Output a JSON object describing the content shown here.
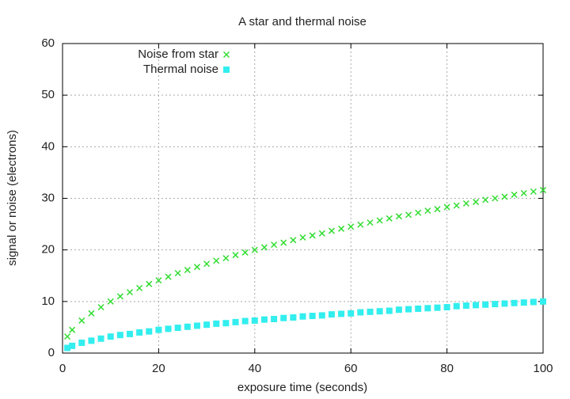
{
  "chart_data": {
    "type": "scatter",
    "title": "A star and thermal noise",
    "x_label": "exposure time (seconds)",
    "y_label": "signal or noise (electrons)",
    "x": [
      1,
      2,
      4,
      6,
      8,
      10,
      12,
      14,
      16,
      18,
      20,
      22,
      24,
      26,
      28,
      30,
      32,
      34,
      36,
      38,
      40,
      42,
      44,
      46,
      48,
      50,
      52,
      54,
      56,
      58,
      60,
      62,
      64,
      66,
      68,
      70,
      72,
      74,
      76,
      78,
      80,
      82,
      84,
      86,
      88,
      90,
      92,
      94,
      96,
      98,
      100
    ],
    "series": [
      {
        "name": "Noise from star",
        "color": "#33dd33",
        "marker": "x",
        "values": [
          3.2,
          4.5,
          6.3,
          7.7,
          8.9,
          10,
          11,
          11.8,
          12.6,
          13.4,
          14.1,
          14.8,
          15.5,
          16.1,
          16.7,
          17.3,
          17.9,
          18.4,
          19,
          19.5,
          20,
          20.5,
          21,
          21.4,
          21.9,
          22.4,
          22.8,
          23.2,
          23.7,
          24.1,
          24.5,
          24.9,
          25.3,
          25.7,
          26.1,
          26.5,
          26.8,
          27.2,
          27.6,
          27.9,
          28.3,
          28.6,
          29,
          29.3,
          29.7,
          30,
          30.3,
          30.7,
          31,
          31.3,
          31.6
        ]
      },
      {
        "name": "Thermal noise",
        "color": "#33eeee",
        "marker": "square",
        "values": [
          1,
          1.4,
          2,
          2.4,
          2.8,
          3.2,
          3.5,
          3.7,
          4,
          4.2,
          4.5,
          4.7,
          4.9,
          5.1,
          5.3,
          5.5,
          5.7,
          5.8,
          6,
          6.2,
          6.3,
          6.5,
          6.6,
          6.8,
          6.9,
          7.1,
          7.2,
          7.3,
          7.5,
          7.6,
          7.7,
          7.9,
          8,
          8.1,
          8.2,
          8.4,
          8.5,
          8.6,
          8.7,
          8.8,
          8.9,
          9.1,
          9.2,
          9.3,
          9.4,
          9.5,
          9.6,
          9.7,
          9.8,
          9.9,
          10
        ]
      }
    ],
    "xlim": [
      0,
      100
    ],
    "xticks": [
      0,
      20,
      40,
      60,
      80,
      100
    ],
    "ylim": [
      0,
      60
    ],
    "yticks": [
      0,
      10,
      20,
      30,
      40,
      50,
      60
    ],
    "grid": true,
    "legend": "upper left"
  }
}
